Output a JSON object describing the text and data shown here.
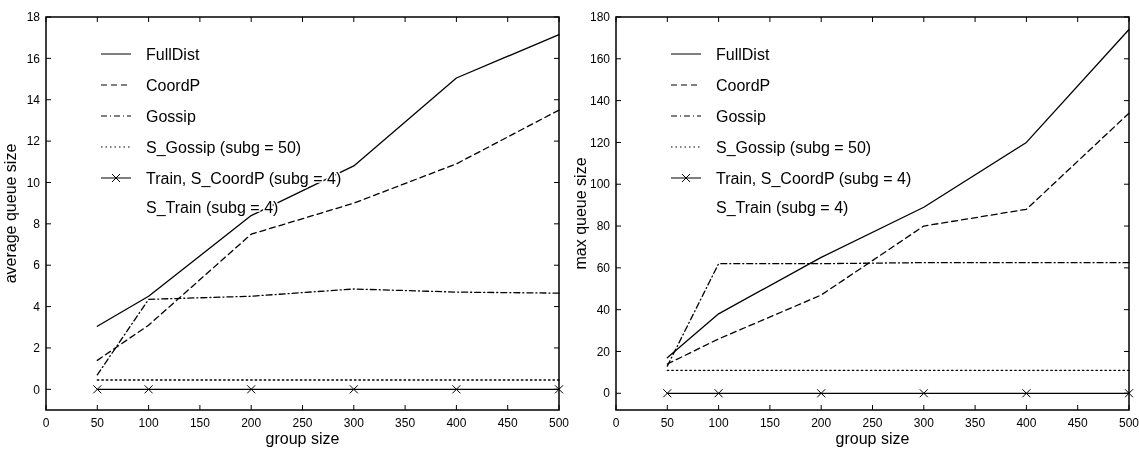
{
  "chart_data": [
    {
      "type": "line",
      "xlabel": "group size",
      "ylabel": "average queue size",
      "x": [
        50,
        100,
        200,
        300,
        400,
        500
      ],
      "xlim": [
        0,
        500
      ],
      "xticks": [
        0,
        50,
        100,
        150,
        200,
        250,
        300,
        350,
        400,
        450,
        500
      ],
      "ylim": [
        -1,
        18
      ],
      "yticks": [
        0,
        2,
        4,
        6,
        8,
        10,
        12,
        14,
        16,
        18
      ],
      "legend": "top left",
      "grid": false,
      "series": [
        {
          "name": "FullDist",
          "color": "#000000",
          "line_style": "solid",
          "marker": "none",
          "values": [
            3.05,
            4.5,
            8.4,
            10.8,
            15.05,
            17.15
          ]
        },
        {
          "name": "CoordP",
          "color": "#000000",
          "line_style": "dashed",
          "marker": "none",
          "values": [
            1.4,
            3.1,
            7.5,
            9.0,
            10.9,
            13.5
          ]
        },
        {
          "name": "Gossip",
          "color": "#000000",
          "line_style": "dashdot",
          "marker": "none",
          "values": [
            0.7,
            4.35,
            4.5,
            4.85,
            4.7,
            4.65
          ]
        },
        {
          "name": "S_Gossip (subg = 50)",
          "color": "#000000",
          "line_style": "dotted",
          "marker": "none",
          "values": [
            0.45,
            0.45,
            0.45,
            0.45,
            0.45,
            0.45
          ]
        },
        {
          "name": "Train, S_CoordP (subg = 4) S_Train (subg = 4)",
          "color": "#000000",
          "line_style": "solid",
          "marker": "cross",
          "values": [
            0,
            0,
            0,
            0,
            0,
            0
          ]
        }
      ]
    },
    {
      "type": "line",
      "xlabel": "group size",
      "ylabel": "max queue size",
      "x": [
        50,
        100,
        200,
        300,
        400,
        500
      ],
      "xlim": [
        0,
        500
      ],
      "xticks": [
        0,
        50,
        100,
        150,
        200,
        250,
        300,
        350,
        400,
        450,
        500
      ],
      "ylim": [
        -8,
        180
      ],
      "yticks": [
        0,
        20,
        40,
        60,
        80,
        100,
        120,
        140,
        160,
        180
      ],
      "legend": "top left",
      "grid": false,
      "series": [
        {
          "name": "FullDist",
          "color": "#000000",
          "line_style": "solid",
          "marker": "none",
          "values": [
            17,
            38,
            65,
            89,
            120,
            174
          ]
        },
        {
          "name": "CoordP",
          "color": "#000000",
          "line_style": "dashed",
          "marker": "none",
          "values": [
            14,
            26,
            47,
            80,
            88,
            134
          ]
        },
        {
          "name": "Gossip",
          "color": "#000000",
          "line_style": "dashdot",
          "marker": "none",
          "values": [
            13,
            62,
            62,
            62.5,
            62.5,
            62.5
          ]
        },
        {
          "name": "S_Gossip (subg = 50)",
          "color": "#000000",
          "line_style": "dotted",
          "marker": "none",
          "values": [
            11,
            11,
            11,
            11,
            11,
            11
          ]
        },
        {
          "name": "Train, S_CoordP (subg = 4) S_Train (subg = 4)",
          "color": "#000000",
          "line_style": "solid",
          "marker": "cross",
          "values": [
            0,
            0,
            0,
            0,
            0,
            0
          ]
        }
      ]
    }
  ]
}
